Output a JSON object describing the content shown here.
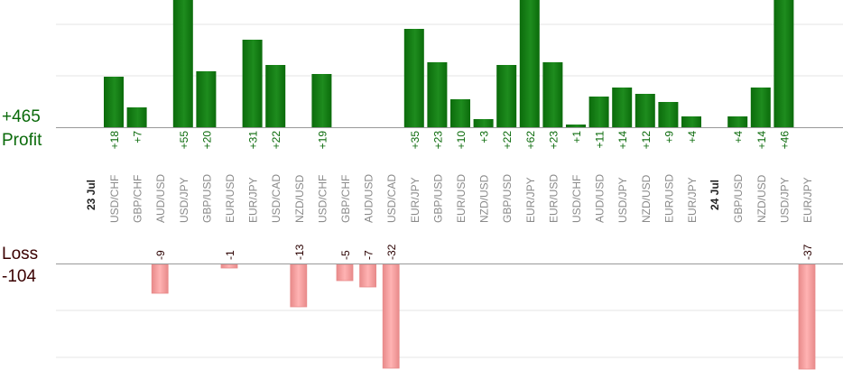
{
  "summary": {
    "profit_total": "+465",
    "profit_label": "Profit",
    "loss_label": "Loss",
    "loss_total": "-104"
  },
  "colors": {
    "profit_bar": "#0b6b0b",
    "profit_bar_light": "#1e8c1e",
    "profit_text": "#0a6a0a",
    "loss_bar": "#ffb3b3",
    "loss_bar_edge": "#e88a8a",
    "loss_text": "#2a0000",
    "category_text": "#8a8a8a",
    "date_text": "#222222",
    "gridline": "#e6e6e6",
    "baseline": "#999999"
  },
  "chart_data": {
    "type": "bar",
    "title": "",
    "xlabel": "",
    "ylabel": "",
    "grid": true,
    "date_markers": [
      {
        "label": "23 Jul",
        "before_index": 0
      },
      {
        "label": "24 Jul",
        "before_index": 27
      }
    ],
    "categories": [
      "USD/CHF",
      "GBP/CHF",
      "AUD/USD",
      "USD/JPY",
      "GBP/USD",
      "EUR/USD",
      "EUR/JPY",
      "USD/CAD",
      "NZD/USD",
      "USD/CHF",
      "GBP/CHF",
      "AUD/USD",
      "USD/CAD",
      "EUR/JPY",
      "GBP/USD",
      "EUR/USD",
      "NZD/USD",
      "GBP/USD",
      "EUR/JPY",
      "EUR/USD",
      "USD/CHF",
      "AUD/USD",
      "USD/JPY",
      "NZD/USD",
      "EUR/USD",
      "EUR/JPY",
      "",
      "GBP/USD",
      "NZD/USD",
      "USD/JPY",
      "EUR/JPY"
    ],
    "values": [
      18,
      7,
      -9,
      55,
      20,
      -1,
      31,
      22,
      -13,
      19,
      -5,
      -7,
      -32,
      35,
      23,
      10,
      3,
      22,
      62,
      23,
      1,
      11,
      14,
      12,
      9,
      4,
      null,
      4,
      14,
      46,
      -37
    ],
    "value_labels": [
      "+18",
      "+7",
      "-9",
      "+55",
      "+20",
      "-1",
      "+31",
      "+22",
      "-13",
      "+19",
      "-5",
      "-7",
      "-32",
      "+35",
      "+23",
      "+10",
      "+3",
      "+22",
      "+62",
      "+23",
      "+1",
      "+11",
      "+14",
      "+12",
      "+9",
      "+4",
      "",
      "+4",
      "+14",
      "+46",
      "-37"
    ],
    "profit_axis_max": 25,
    "loss_axis_max": 22
  }
}
